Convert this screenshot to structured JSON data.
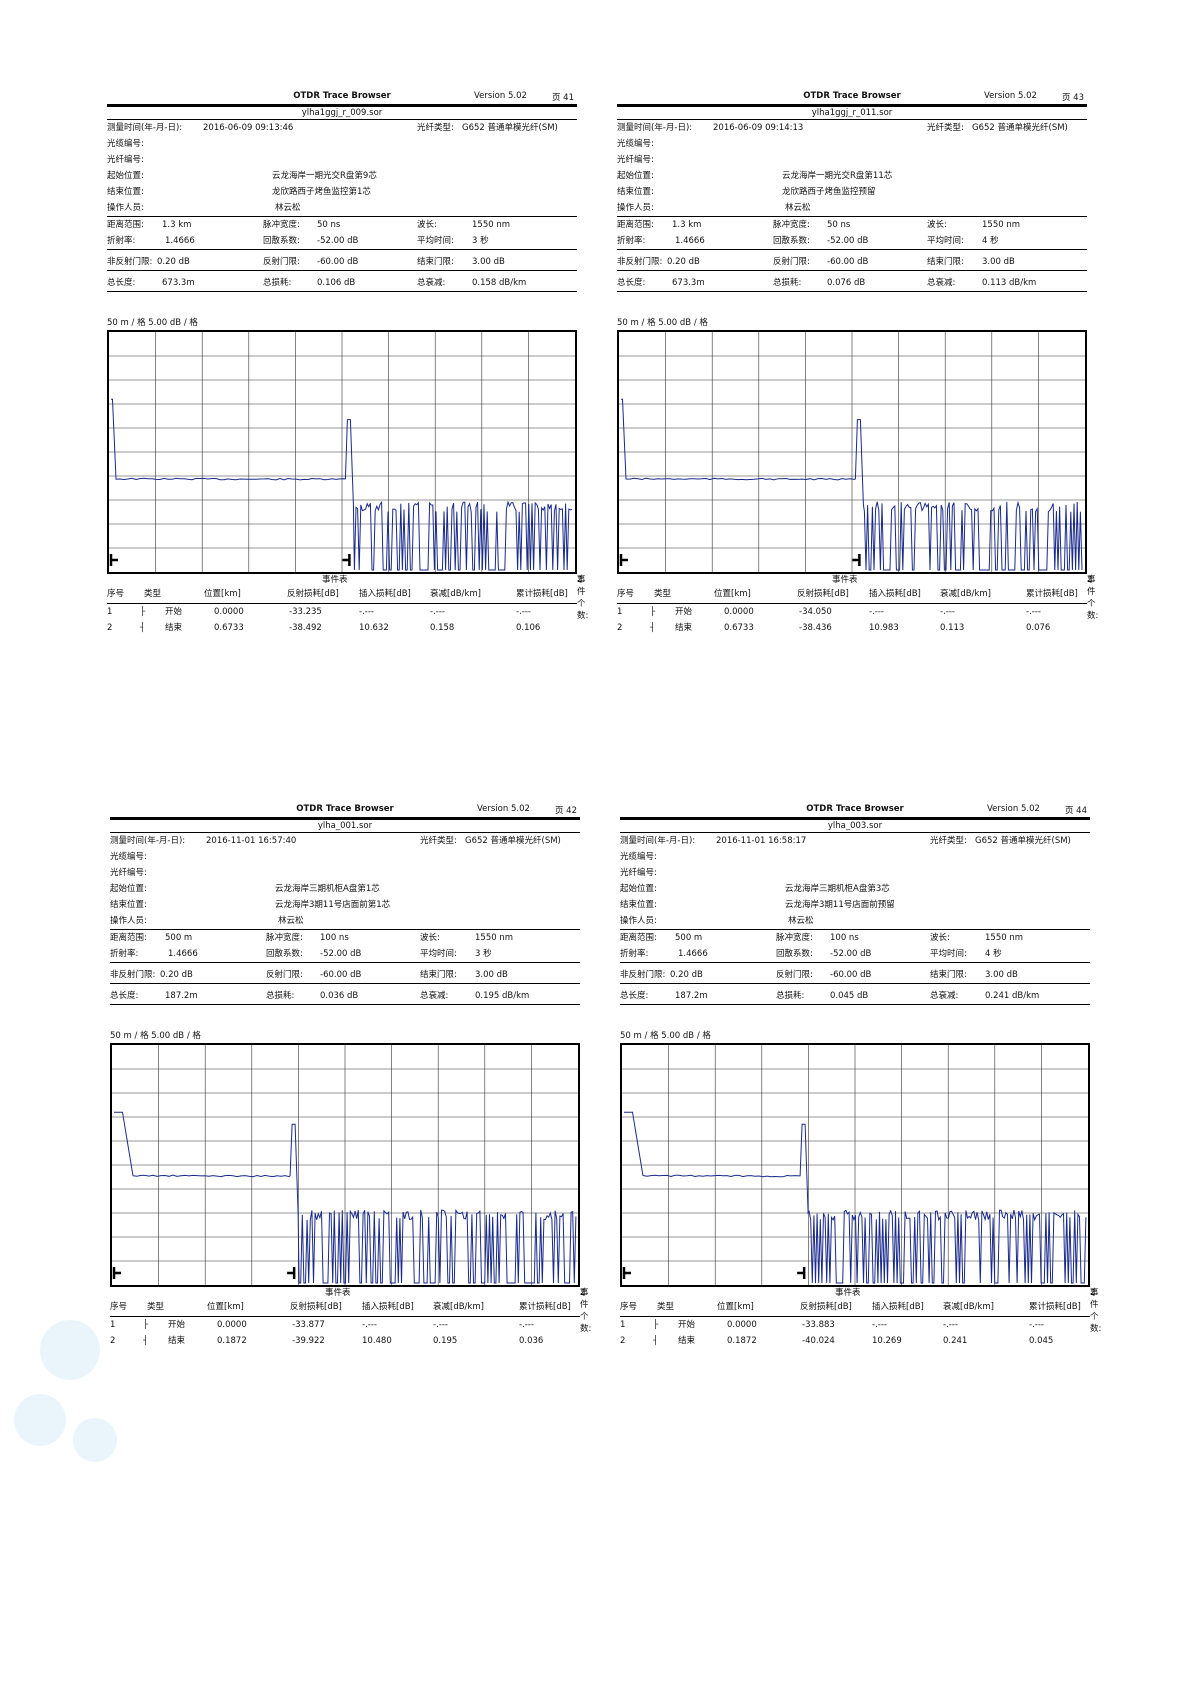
{
  "labels": {
    "app_title": "OTDR Trace Browser",
    "page_prefix": "页",
    "measure_time": "测量时间(年-月-日):",
    "fiber_type": "光纤类型:",
    "cable_id": "光缆编号:",
    "fiber_id": "光纤编号:",
    "start_pos": "起始位置:",
    "end_pos": "结束位置:",
    "operator": "操作人员:",
    "range": "距离范围:",
    "pulse": "脉冲宽度:",
    "wavelength": "波长:",
    "ior": "折射率:",
    "backscatter": "回散系数:",
    "avg_time": "平均时间:",
    "nonrefl": "非反射门限:",
    "refl": "反射门限:",
    "end_thr": "结束门限:",
    "total_len": "总长度:",
    "total_loss": "总损耗:",
    "total_atten": "总衰减:",
    "event_table": "事件表",
    "event_count": "事件个数:",
    "col_no": "序号",
    "col_type": "类型",
    "col_pos": "位置[km]",
    "col_refl": "反射损耗[dB]",
    "col_ins": "插入损耗[dB]",
    "col_att": "衰减[dB/km]",
    "col_cum": "累计损耗[dB]"
  },
  "reports": [
    {
      "version": "Version 5.02",
      "page": "41",
      "file": "ylha1ggj_r_009.sor",
      "datetime": "2016-06-09  09:13:46",
      "fiber_type": "G652 普通单模光纤(SM)",
      "start": "云龙海岸一期光交R盘第9芯",
      "end": "龙欣路西子烤鱼监控第1芯",
      "operator": "林云松",
      "range": "1.3 km",
      "pulse": "50 ns",
      "wavelength": "1550 nm",
      "ior": "1.4666",
      "backscatter": "-52.00 dB",
      "avg_time": "3 秒",
      "nonrefl": "0.20 dB",
      "refl": "-60.00 dB",
      "end_thr": "3.00 dB",
      "total_len": "673.3m",
      "total_loss": "0.106 dB",
      "total_atten": "0.158 dB/km",
      "scale": "50 m / 格    5.00 dB / 格",
      "event_count": "2",
      "events": [
        {
          "no": "1",
          "icon": "├",
          "type": "开始",
          "pos": "0.0000",
          "refl": "-33.235",
          "ins": "-.---",
          "att": "-.---",
          "cum": "-.---"
        },
        {
          "no": "2",
          "icon": "┤",
          "type": "结束",
          "pos": "0.6733",
          "refl": "-38.492",
          "ins": "10.632",
          "att": "0.158",
          "cum": "0.106"
        }
      ],
      "trace": {
        "plateau": 0.612,
        "launch_end": 0.015,
        "end_event": 0.518,
        "peak": 0.365,
        "noise_floor": 0.72
      }
    },
    {
      "version": "Version 5.02",
      "page": "43",
      "file": "ylha1ggj_r_011.sor",
      "datetime": "2016-06-09  09:14:13",
      "fiber_type": "G652 普通单模光纤(SM)",
      "start": "云龙海岸一期光交R盘第11芯",
      "end": "龙欣路西子烤鱼监控预留",
      "operator": "林云松",
      "range": "1.3 km",
      "pulse": "50 ns",
      "wavelength": "1550 nm",
      "ior": "1.4666",
      "backscatter": "-52.00 dB",
      "avg_time": "4 秒",
      "nonrefl": "0.20 dB",
      "refl": "-60.00 dB",
      "end_thr": "3.00 dB",
      "total_len": "673.3m",
      "total_loss": "0.076 dB",
      "total_atten": "0.113 dB/km",
      "scale": "50 m / 格    5.00 dB / 格",
      "event_count": "2",
      "events": [
        {
          "no": "1",
          "icon": "├",
          "type": "开始",
          "pos": "0.0000",
          "refl": "-34.050",
          "ins": "-.---",
          "att": "-.---",
          "cum": "-.---"
        },
        {
          "no": "2",
          "icon": "┤",
          "type": "结束",
          "pos": "0.6733",
          "refl": "-38.436",
          "ins": "10.983",
          "att": "0.113",
          "cum": "0.076"
        }
      ],
      "trace": {
        "plateau": 0.612,
        "launch_end": 0.015,
        "end_event": 0.518,
        "peak": 0.365,
        "noise_floor": 0.72
      }
    },
    {
      "version": "Version 5.02",
      "page": "42",
      "file": "ylha_001.sor",
      "datetime": "2016-11-01  16:57:40",
      "fiber_type": "G652 普通单模光纤(SM)",
      "start": "云龙海岸三期机柜A盘第1芯",
      "end": "云龙海岸3期11号店面前第1芯",
      "operator": "林云松",
      "range": "500 m",
      "pulse": "100 ns",
      "wavelength": "1550 nm",
      "ior": "1.4666",
      "backscatter": "-52.00 dB",
      "avg_time": "3 秒",
      "nonrefl": "0.20 dB",
      "refl": "-60.00 dB",
      "end_thr": "3.00 dB",
      "total_len": "187.2m",
      "total_loss": "0.036 dB",
      "total_atten": "0.195 dB/km",
      "scale": "50 m / 格    5.00 dB / 格",
      "event_count": "2",
      "events": [
        {
          "no": "1",
          "icon": "├",
          "type": "开始",
          "pos": "0.0000",
          "refl": "-33.877",
          "ins": "-.---",
          "att": "-.---",
          "cum": "-.---"
        },
        {
          "no": "2",
          "icon": "┤",
          "type": "结束",
          "pos": "0.1872",
          "refl": "-39.922",
          "ins": "10.480",
          "att": "0.195",
          "cum": "0.036"
        }
      ],
      "trace": {
        "plateau": 0.545,
        "launch_end": 0.045,
        "end_event": 0.393,
        "peak": 0.33,
        "noise_floor": 0.7
      }
    },
    {
      "version": "Version 5.02",
      "page": "44",
      "file": "ylha_003.sor",
      "datetime": "2016-11-01  16:58:17",
      "fiber_type": "G652 普通单模光纤(SM)",
      "start": "云龙海岸三期机柜A盘第3芯",
      "end": "云龙海岸3期11号店面前预留",
      "operator": "林云松",
      "range": "500 m",
      "pulse": "100 ns",
      "wavelength": "1550 nm",
      "ior": "1.4666",
      "backscatter": "-52.00 dB",
      "avg_time": "4 秒",
      "nonrefl": "0.20 dB",
      "refl": "-60.00 dB",
      "end_thr": "3.00 dB",
      "total_len": "187.2m",
      "total_loss": "0.045 dB",
      "total_atten": "0.241 dB/km",
      "scale": "50 m / 格    5.00 dB / 格",
      "event_count": "2",
      "events": [
        {
          "no": "1",
          "icon": "├",
          "type": "开始",
          "pos": "0.0000",
          "refl": "-33.883",
          "ins": "-.---",
          "att": "-.---",
          "cum": "-.---"
        },
        {
          "no": "2",
          "icon": "┤",
          "type": "结束",
          "pos": "0.1872",
          "refl": "-40.024",
          "ins": "10.269",
          "att": "0.241",
          "cum": "0.045"
        }
      ],
      "trace": {
        "plateau": 0.545,
        "launch_end": 0.045,
        "end_event": 0.393,
        "peak": 0.33,
        "noise_floor": 0.7
      }
    }
  ],
  "colors": {
    "trace": "#1a2a8c",
    "grid": "#333333"
  }
}
